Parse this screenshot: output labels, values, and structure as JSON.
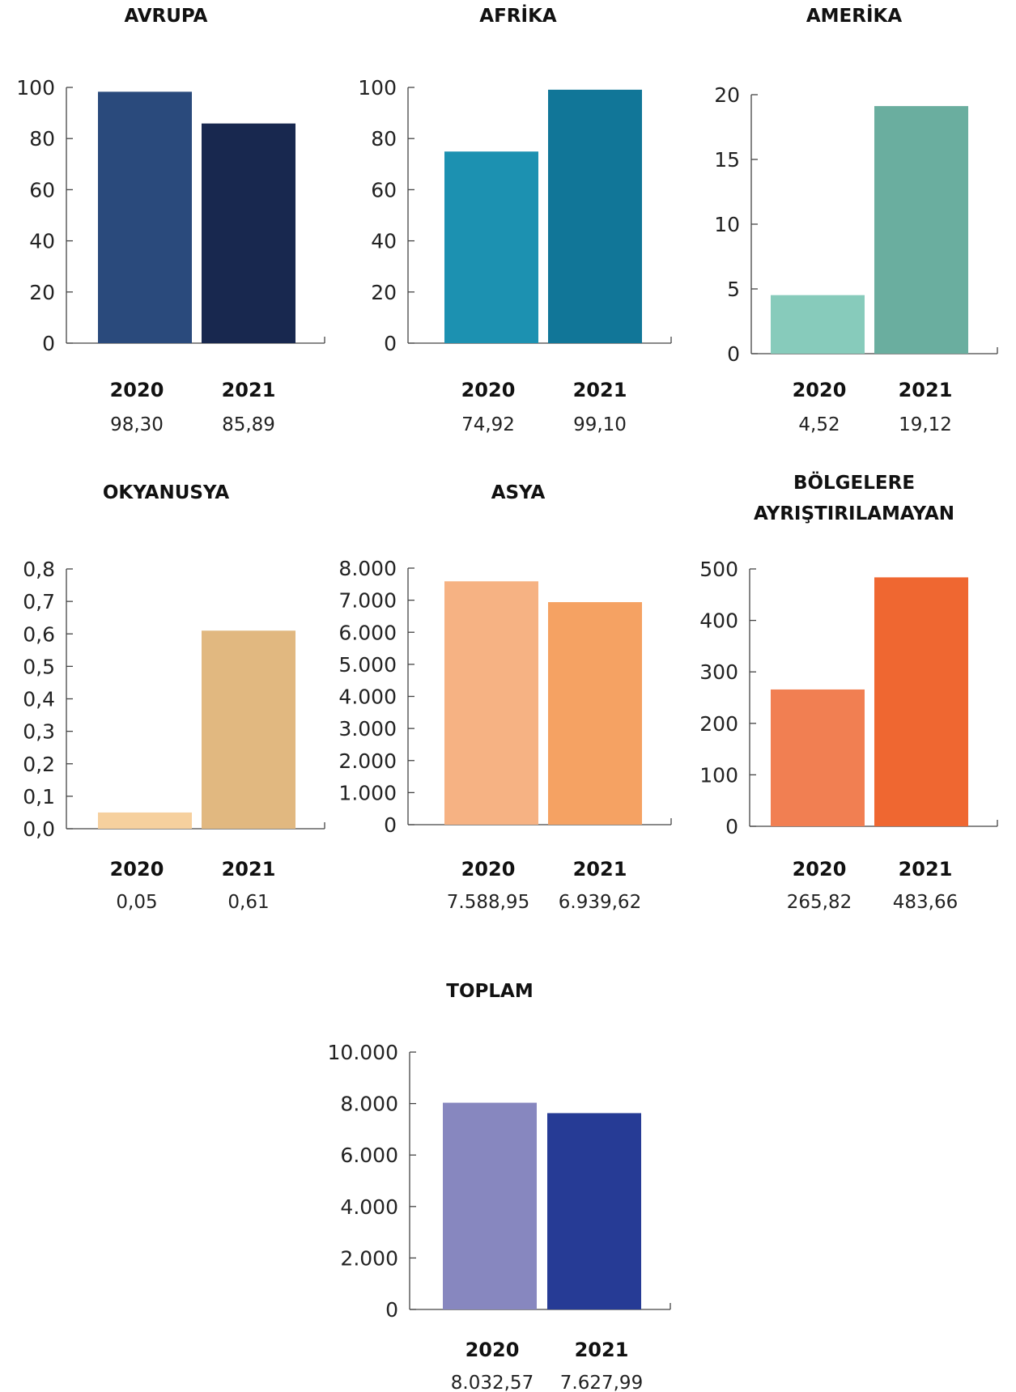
{
  "chart_data": [
    {
      "type": "bar",
      "title": "AVRUPA",
      "categories": [
        "2020",
        "2021"
      ],
      "values": [
        98.3,
        85.89
      ],
      "value_labels": [
        "98,30",
        "85,89"
      ],
      "ylim": [
        0,
        100
      ],
      "yticks": [
        0,
        20,
        40,
        60,
        80,
        100
      ],
      "ytick_labels": [
        "0",
        "20",
        "40",
        "60",
        "80",
        "100"
      ],
      "colors": [
        "#2a4a7c",
        "#18284f"
      ],
      "grid": false
    },
    {
      "type": "bar",
      "title": "AFRİKA",
      "categories": [
        "2020",
        "2021"
      ],
      "values": [
        74.92,
        99.1
      ],
      "value_labels": [
        "74,92",
        "99,10"
      ],
      "ylim": [
        0,
        100
      ],
      "yticks": [
        0,
        20,
        40,
        60,
        80,
        100
      ],
      "ytick_labels": [
        "0",
        "20",
        "40",
        "60",
        "80",
        "100"
      ],
      "colors": [
        "#1c91b1",
        "#117698"
      ],
      "grid": false
    },
    {
      "type": "bar",
      "title": "AMERİKA",
      "categories": [
        "2020",
        "2021"
      ],
      "values": [
        4.52,
        19.12
      ],
      "value_labels": [
        "4,52",
        "19,12"
      ],
      "ylim": [
        0,
        20
      ],
      "yticks": [
        0,
        5,
        10,
        15,
        20
      ],
      "ytick_labels": [
        "0",
        "5",
        "10",
        "15",
        "20"
      ],
      "colors": [
        "#87cbbb",
        "#6aae9f"
      ],
      "grid": false
    },
    {
      "type": "bar",
      "title": "OKYANUSYA",
      "categories": [
        "2020",
        "2021"
      ],
      "values": [
        0.05,
        0.61
      ],
      "value_labels": [
        "0,05",
        "0,61"
      ],
      "ylim": [
        0,
        0.8
      ],
      "yticks": [
        0,
        0.1,
        0.2,
        0.3,
        0.4,
        0.5,
        0.6,
        0.7,
        0.8
      ],
      "ytick_labels": [
        "0,0",
        "0,1",
        "0,2",
        "0,3",
        "0,4",
        "0,5",
        "0,6",
        "0,7",
        "0,8"
      ],
      "colors": [
        "#f6d09e",
        "#e1b880"
      ],
      "grid": false
    },
    {
      "type": "bar",
      "title": "ASYA",
      "categories": [
        "2020",
        "2021"
      ],
      "values": [
        7588.95,
        6939.62
      ],
      "value_labels": [
        "7.588,95",
        "6.939,62"
      ],
      "ylim": [
        0,
        8000
      ],
      "yticks": [
        0,
        1000,
        2000,
        3000,
        4000,
        5000,
        6000,
        7000,
        8000
      ],
      "ytick_labels": [
        "0",
        "1.000",
        "2.000",
        "3.000",
        "4.000",
        "5.000",
        "6.000",
        "7.000",
        "8.000"
      ],
      "colors": [
        "#f6b283",
        "#f5a263"
      ],
      "grid": false
    },
    {
      "type": "bar",
      "title": [
        "BÖLGELERE",
        "AYRIŞTIRILAMAYAN"
      ],
      "categories": [
        "2020",
        "2021"
      ],
      "values": [
        265.82,
        483.66
      ],
      "value_labels": [
        "265,82",
        "483,66"
      ],
      "ylim": [
        0,
        500
      ],
      "yticks": [
        0,
        100,
        200,
        300,
        400,
        500
      ],
      "ytick_labels": [
        "0",
        "100",
        "200",
        "300",
        "400",
        "500"
      ],
      "colors": [
        "#f17f52",
        "#ef6731"
      ],
      "grid": false
    },
    {
      "type": "bar",
      "title": "TOPLAM",
      "categories": [
        "2020",
        "2021"
      ],
      "values": [
        8032.57,
        7627.99
      ],
      "value_labels": [
        "8.032,57",
        "7.627,99"
      ],
      "ylim": [
        0,
        10000
      ],
      "yticks": [
        0,
        2000,
        4000,
        6000,
        8000,
        10000
      ],
      "ytick_labels": [
        "0",
        "2.000",
        "4.000",
        "6.000",
        "8.000",
        "10.000"
      ],
      "colors": [
        "#8787bf",
        "#263b95"
      ],
      "grid": false
    }
  ]
}
